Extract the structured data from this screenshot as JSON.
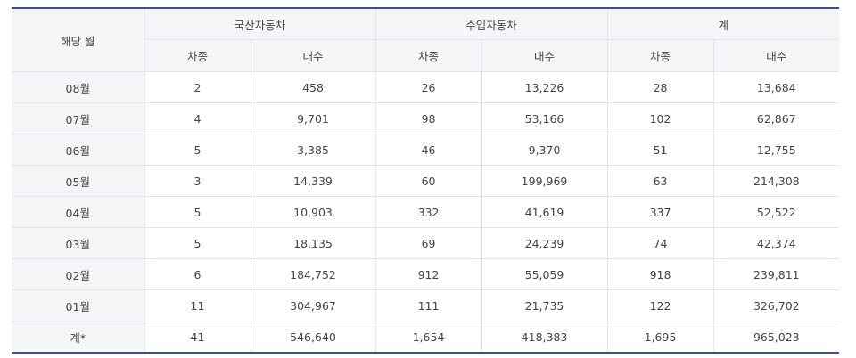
{
  "header": {
    "period": "해당 월",
    "groups": [
      "국산자동차",
      "수입자동차",
      "계"
    ],
    "sub": [
      "차종",
      "대수",
      "차종",
      "대수",
      "차종",
      "대수"
    ]
  },
  "rows": [
    {
      "month": "08월",
      "cells": [
        "2",
        "458",
        "26",
        "13,226",
        "28",
        "13,684"
      ]
    },
    {
      "month": "07월",
      "cells": [
        "4",
        "9,701",
        "98",
        "53,166",
        "102",
        "62,867"
      ]
    },
    {
      "month": "06월",
      "cells": [
        "5",
        "3,385",
        "46",
        "9,370",
        "51",
        "12,755"
      ]
    },
    {
      "month": "05월",
      "cells": [
        "3",
        "14,339",
        "60",
        "199,969",
        "63",
        "214,308"
      ]
    },
    {
      "month": "04월",
      "cells": [
        "5",
        "10,903",
        "332",
        "41,619",
        "337",
        "52,522"
      ]
    },
    {
      "month": "03월",
      "cells": [
        "5",
        "18,135",
        "69",
        "24,239",
        "74",
        "42,374"
      ]
    },
    {
      "month": "02월",
      "cells": [
        "6",
        "184,752",
        "912",
        "55,059",
        "918",
        "239,811"
      ]
    },
    {
      "month": "01월",
      "cells": [
        "11",
        "304,967",
        "111",
        "21,735",
        "122",
        "326,702"
      ]
    },
    {
      "month": "계*",
      "cells": [
        "41",
        "546,640",
        "1,654",
        "418,383",
        "1,695",
        "965,023"
      ]
    }
  ],
  "colors": {
    "border_accent": "#3f4e8c",
    "header_bg": "#f4f5f7"
  }
}
